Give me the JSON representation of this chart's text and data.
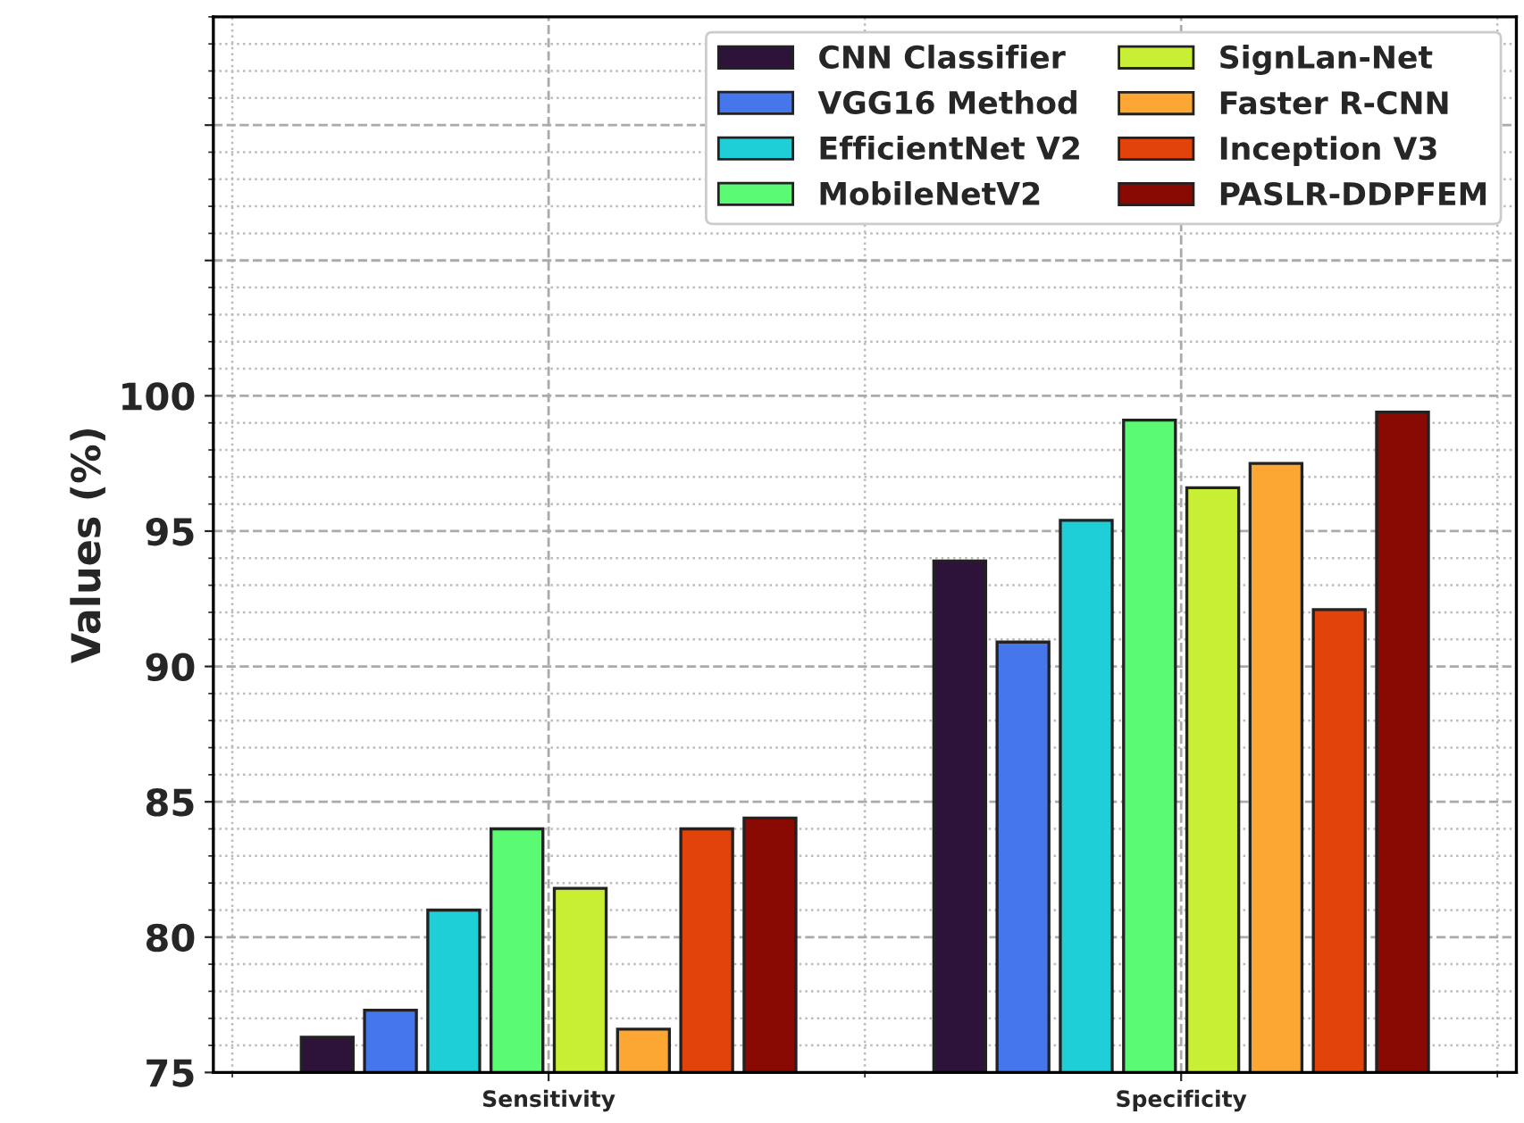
{
  "chart_data": {
    "type": "bar",
    "ylabel": "Values (%)",
    "categories": [
      "Sensitivity",
      "Specificity"
    ],
    "series": [
      {
        "name": "CNN Classifier",
        "color": "#2d1239",
        "values": [
          76.3,
          93.9
        ]
      },
      {
        "name": "VGG16 Method",
        "color": "#4676ec",
        "values": [
          77.3,
          90.9
        ]
      },
      {
        "name": "EfficientNet V2",
        "color": "#1fcfd8",
        "values": [
          81.0,
          95.4
        ]
      },
      {
        "name": "MobileNetV2",
        "color": "#5afb72",
        "values": [
          84.0,
          99.1
        ]
      },
      {
        "name": "SignLan-Net",
        "color": "#c8ef34",
        "values": [
          81.8,
          96.6
        ]
      },
      {
        "name": "Faster R-CNN",
        "color": "#fca633",
        "values": [
          76.6,
          97.5
        ]
      },
      {
        "name": "Inception V3",
        "color": "#e1430b",
        "values": [
          84.0,
          92.1
        ]
      },
      {
        "name": "PASLR-DDPFEM",
        "color": "#880a03",
        "values": [
          84.4,
          99.4
        ]
      }
    ],
    "ylim": [
      75,
      114
    ],
    "yticks": [
      75,
      80,
      85,
      90,
      95,
      100,
      {
        "value": 105,
        "label": null
      },
      {
        "value": 110,
        "label": null
      }
    ],
    "grid": true,
    "legend": "top right"
  }
}
